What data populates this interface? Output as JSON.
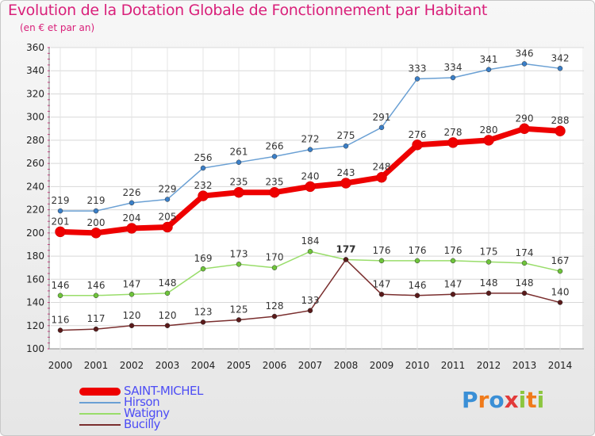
{
  "chart_data": {
    "type": "line",
    "title": "Evolution de la Dotation Globale de Fonctionnement par Habitant",
    "subtitle": "(en € et par an)",
    "x": [
      "2000",
      "2001",
      "2002",
      "2003",
      "2004",
      "2005",
      "2006",
      "2007",
      "2008",
      "2009",
      "2010",
      "2011",
      "2012",
      "2013",
      "2014"
    ],
    "ylim": [
      100,
      360
    ],
    "yticks": [
      100,
      120,
      140,
      160,
      180,
      200,
      220,
      240,
      260,
      280,
      300,
      320,
      340,
      360
    ],
    "grid": true,
    "series": [
      {
        "name": "Hirson",
        "color": "#6aa0d4",
        "marker": "#3a7fc8",
        "values": [
          219,
          219,
          226,
          229,
          256,
          261,
          266,
          272,
          275,
          291,
          333,
          334,
          341,
          346,
          342
        ]
      },
      {
        "name": "Watigny",
        "color": "#99dd6a",
        "marker": "#6ec43a",
        "values": [
          146,
          146,
          147,
          148,
          169,
          173,
          170,
          184,
          177,
          176,
          176,
          176,
          175,
          174,
          167
        ]
      },
      {
        "name": "Bucilly",
        "color": "#7a2e2e",
        "marker": "#5a1a1a",
        "values": [
          116,
          117,
          120,
          120,
          123,
          125,
          128,
          133,
          177,
          147,
          146,
          147,
          148,
          148,
          140
        ]
      },
      {
        "name": "SAINT-MICHEL",
        "color": "#ee0000",
        "marker": "#ee0000",
        "values": [
          201,
          200,
          204,
          205,
          232,
          235,
          235,
          240,
          243,
          248,
          276,
          278,
          280,
          290,
          288
        ]
      }
    ],
    "legend": [
      "SAINT-MICHEL",
      "Hirson",
      "Watigny",
      "Bucilly"
    ]
  },
  "logo": {
    "letters": [
      "P",
      "r",
      "o",
      "x",
      "i",
      "t",
      "i"
    ],
    "colors": [
      "#3a8fd6",
      "#f07a1a",
      "#3a8fd6",
      "#e23a3a",
      "#8cc63f",
      "#f07a1a",
      "#8cc63f"
    ]
  }
}
